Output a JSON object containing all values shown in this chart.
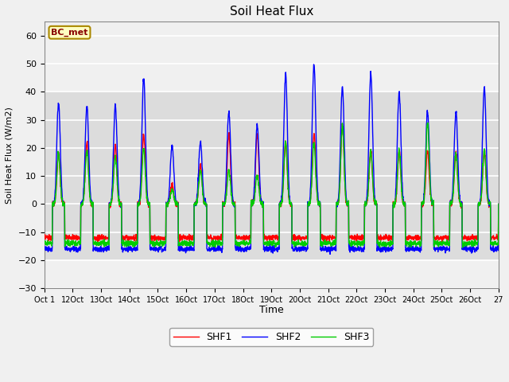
{
  "title": "Soil Heat Flux",
  "ylabel": "Soil Heat Flux (W/m2)",
  "xlabel": "Time",
  "ylim": [
    -30,
    65
  ],
  "yticks": [
    -30,
    -20,
    -10,
    0,
    10,
    20,
    30,
    40,
    50,
    60
  ],
  "line_colors": {
    "SHF1": "#FF0000",
    "SHF2": "#0000FF",
    "SHF3": "#00CC00"
  },
  "line_width": 1.0,
  "fig_facecolor": "#F0F0F0",
  "plot_facecolor": "#E8E8E8",
  "band_facecolor": "#DCDCDC",
  "annotation_text": "BC_met",
  "annotation_bg": "#FFFFC0",
  "annotation_edge": "#AA8800",
  "annotation_text_color": "#880000",
  "tick_labels": [
    "Oct 1",
    "12Oct",
    "13Oct",
    "14Oct",
    "15Oct",
    "16Oct",
    "17Oct",
    "18Oct",
    "19Oct",
    "20Oct",
    "21Oct",
    "22Oct",
    "23Oct",
    "24Oct",
    "25Oct",
    "26Oct",
    "27"
  ],
  "num_days": 16,
  "ppd": 144,
  "day_amps_shf1": [
    18,
    22,
    21,
    25,
    7,
    14,
    25,
    25,
    22,
    25,
    28,
    19,
    19,
    19,
    18,
    19
  ],
  "day_amps_shf2": [
    36,
    35,
    35,
    45,
    21,
    22,
    33,
    28,
    46,
    50,
    42,
    47,
    40,
    33,
    33,
    41
  ],
  "day_amps_shf3": [
    18,
    19,
    17,
    20,
    5,
    12,
    12,
    10,
    22,
    22,
    28,
    19,
    19,
    29,
    18,
    19
  ],
  "night_shf1": -12,
  "night_shf2": -16,
  "night_shf3": -14
}
